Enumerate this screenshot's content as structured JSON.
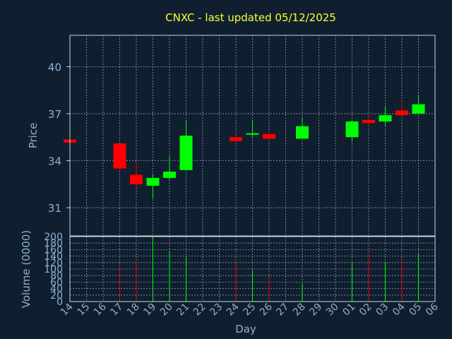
{
  "chart_data": {
    "type": "candlestick",
    "title": "CNXC - last updated 05/12/2025",
    "colors": {
      "background": "#0f1f30",
      "title": "#ffff33",
      "axis_text": "#8fb0d0",
      "frame": "#c8d4e0",
      "grid": "#c8d4e0",
      "up": "#00ff00",
      "down": "#ff0000"
    },
    "days": [
      "14",
      "15",
      "16",
      "17",
      "18",
      "19",
      "20",
      "21",
      "22",
      "23",
      "24",
      "25",
      "26",
      "27",
      "28",
      "29",
      "30",
      "01",
      "02",
      "03",
      "04",
      "05",
      "06"
    ],
    "price_axis": {
      "label": "Price",
      "ylim": [
        29.2,
        42.0
      ],
      "ticks": [
        31,
        34,
        37,
        40
      ]
    },
    "volume_axis": {
      "label": "Volume (0000)",
      "ylim": [
        0,
        200
      ],
      "ticks": [
        0,
        20,
        40,
        60,
        80,
        100,
        120,
        140,
        160,
        180,
        200
      ]
    },
    "xlabel": "Day",
    "candles": [
      {
        "day": "14",
        "open": 35.35,
        "close": 35.15,
        "high": 35.35,
        "low": 35.15,
        "volume": 0
      },
      {
        "day": "17",
        "open": 35.1,
        "close": 33.5,
        "high": 35.1,
        "low": 33.3,
        "volume": 105
      },
      {
        "day": "18",
        "open": 33.1,
        "close": 32.5,
        "high": 33.9,
        "low": 32.3,
        "volume": 125
      },
      {
        "day": "19",
        "open": 32.4,
        "close": 32.9,
        "high": 33.1,
        "low": 31.6,
        "volume": 200
      },
      {
        "day": "20",
        "open": 32.9,
        "close": 33.3,
        "high": 34.3,
        "low": 32.8,
        "volume": 155
      },
      {
        "day": "21",
        "open": 33.4,
        "close": 35.6,
        "high": 36.5,
        "low": 33.4,
        "volume": 135
      },
      {
        "day": "24",
        "open": 35.5,
        "close": 35.25,
        "high": 35.6,
        "low": 35.2,
        "volume": 120
      },
      {
        "day": "25",
        "open": 35.7,
        "close": 35.75,
        "high": 36.6,
        "low": 35.5,
        "volume": 97
      },
      {
        "day": "26",
        "open": 35.7,
        "close": 35.4,
        "high": 35.8,
        "low": 35.35,
        "volume": 75
      },
      {
        "day": "28",
        "open": 35.4,
        "close": 36.2,
        "high": 36.7,
        "low": 35.4,
        "volume": 55
      },
      {
        "day": "01",
        "open": 35.5,
        "close": 36.5,
        "high": 36.6,
        "low": 35.2,
        "volume": 118
      },
      {
        "day": "02",
        "open": 36.6,
        "close": 36.4,
        "high": 37.0,
        "low": 36.2,
        "volume": 148
      },
      {
        "day": "03",
        "open": 36.5,
        "close": 36.9,
        "high": 37.5,
        "low": 36.2,
        "volume": 122
      },
      {
        "day": "04",
        "open": 37.2,
        "close": 36.9,
        "high": 37.7,
        "low": 36.9,
        "volume": 132
      },
      {
        "day": "05",
        "open": 37.0,
        "close": 37.6,
        "high": 38.2,
        "low": 37.0,
        "volume": 150
      }
    ]
  }
}
